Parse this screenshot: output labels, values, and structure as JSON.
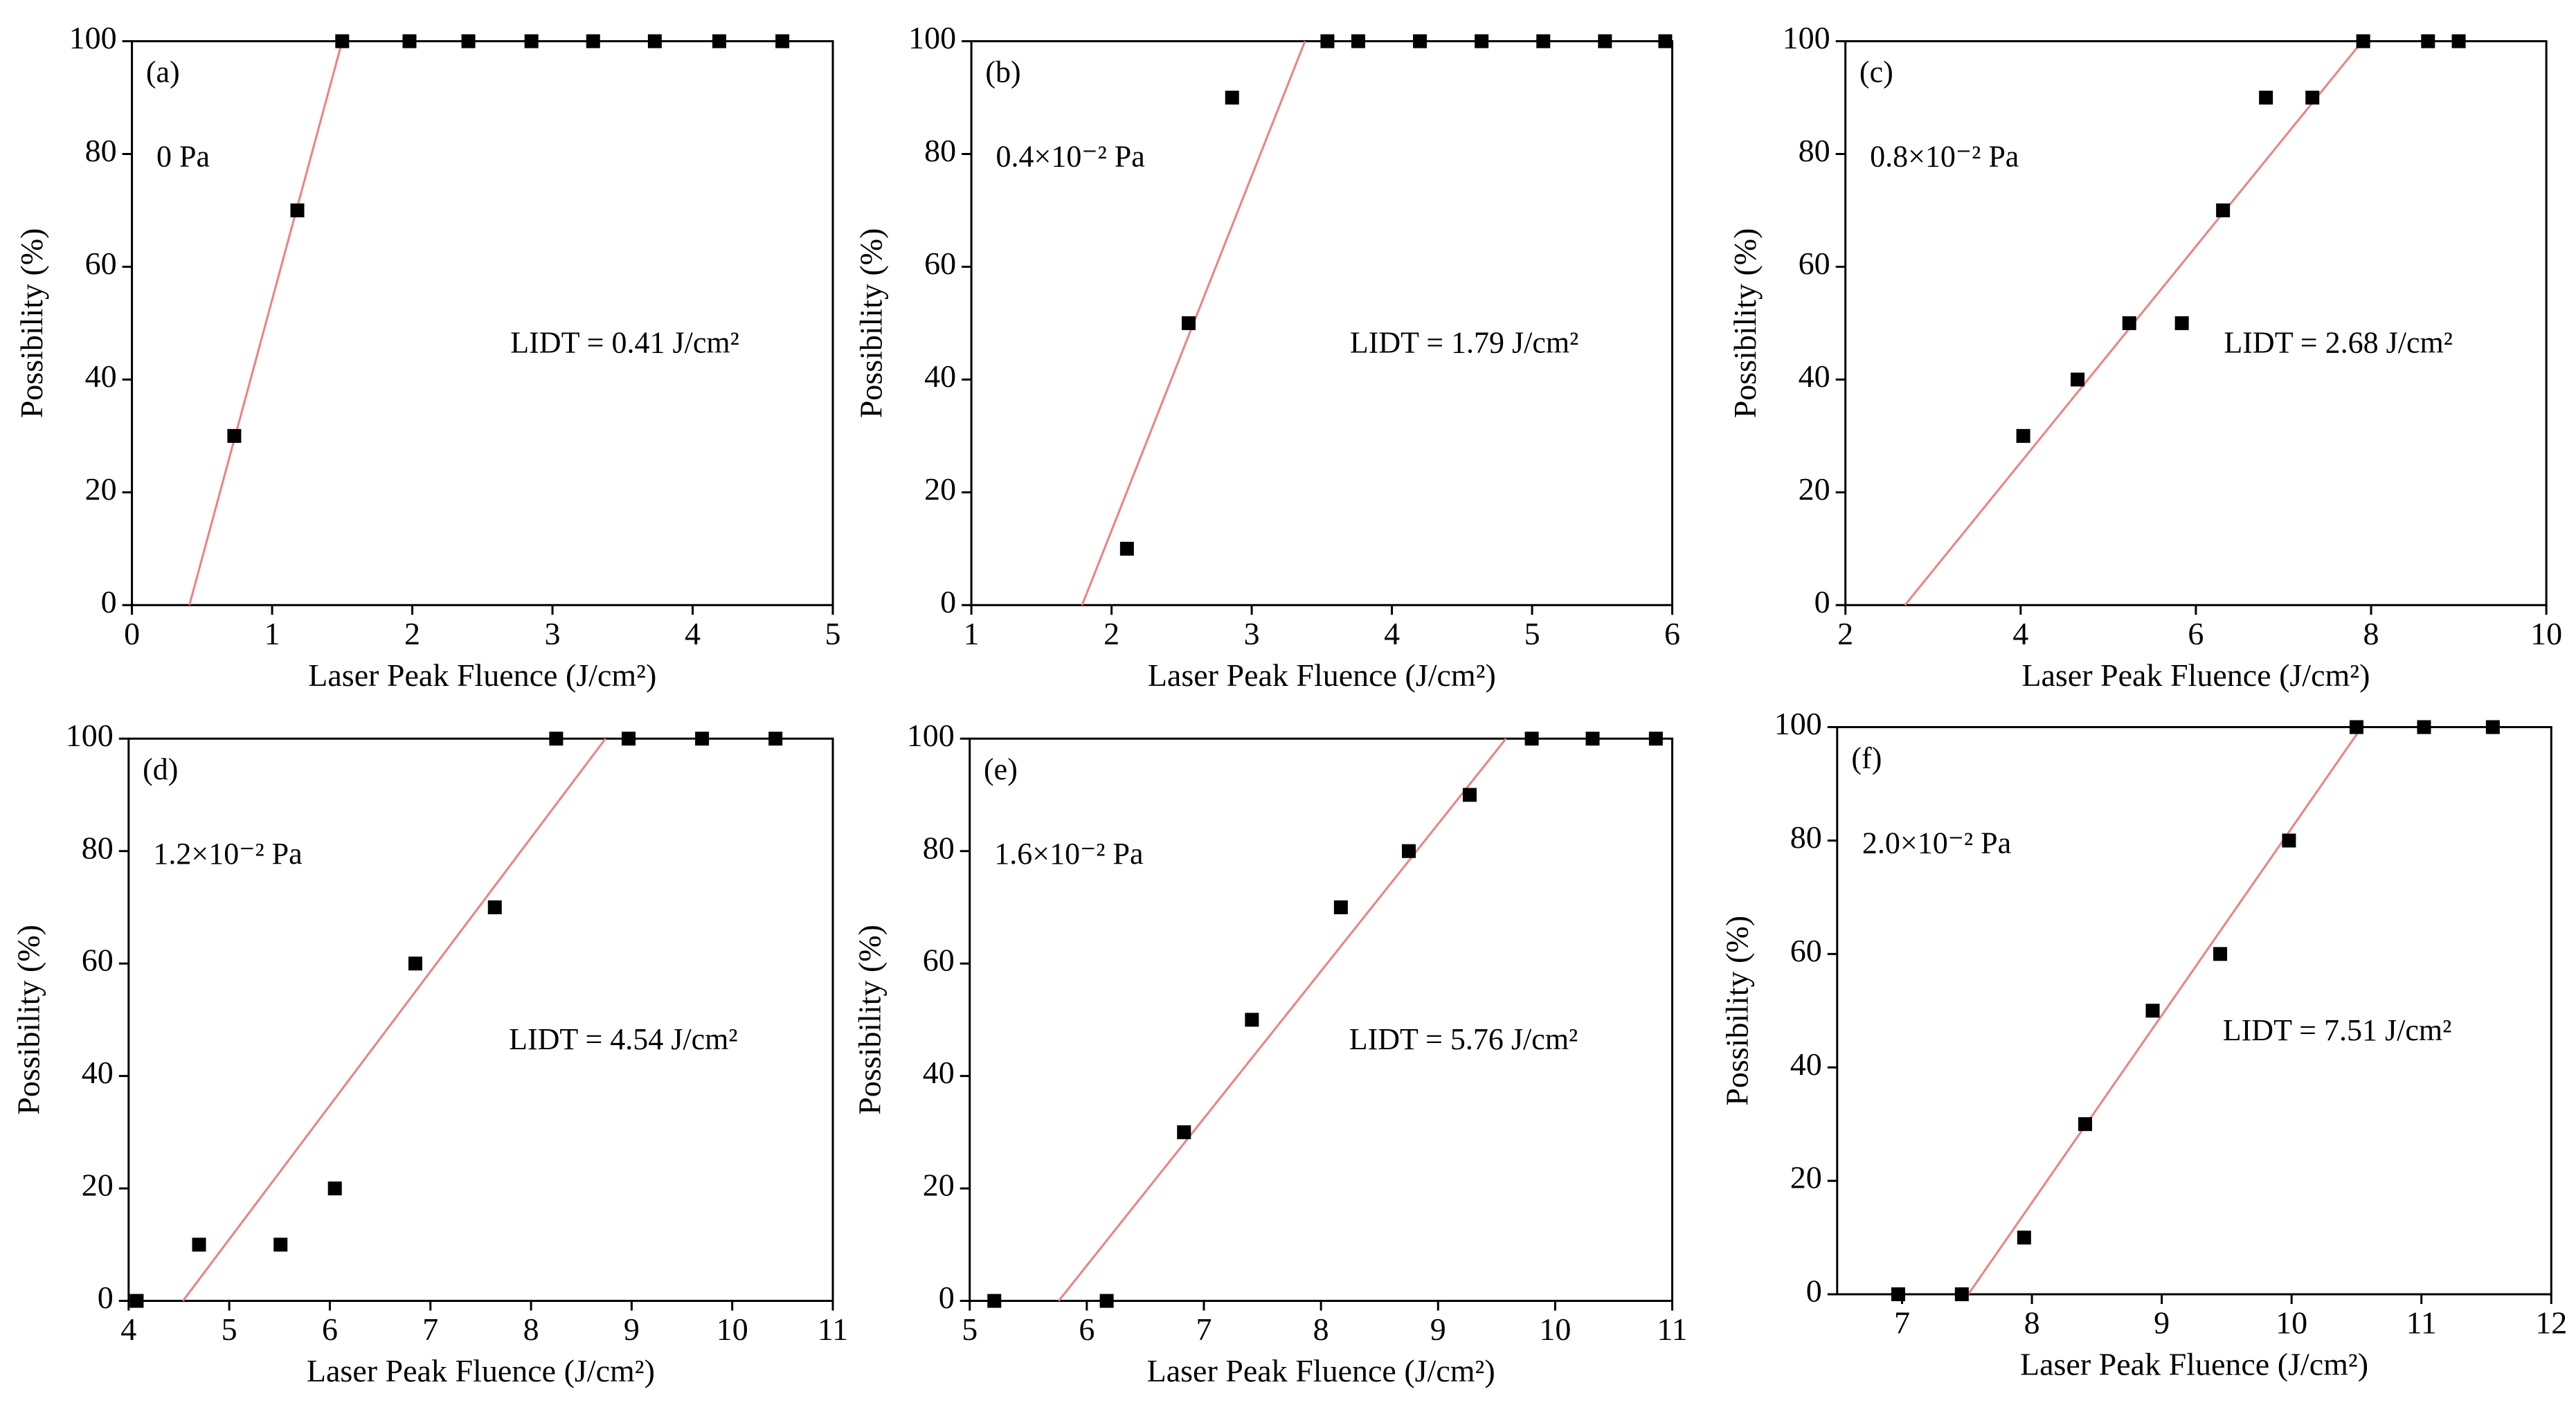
{
  "chart_data": [
    {
      "type": "scatter",
      "label": "(a)",
      "pressure": "0 Pa",
      "annotation": "LIDT = 0.41 J/cm²",
      "xlabel": "Laser Peak Fluence (J/cm²)",
      "ylabel": "Possibility (%)",
      "xlim": [
        0,
        5
      ],
      "xticks": [
        0,
        1,
        2,
        3,
        4,
        5
      ],
      "ylim": [
        0,
        100
      ],
      "yticks": [
        0,
        20,
        40,
        60,
        80,
        100
      ],
      "series": [
        {
          "color": "#000000",
          "x": [
            0.73,
            1.18,
            1.5,
            1.98,
            2.4,
            2.85,
            3.29,
            3.73,
            4.19,
            4.64
          ],
          "values": [
            30,
            70,
            100,
            100,
            100,
            100,
            100,
            100,
            100,
            100
          ]
        }
      ],
      "fit": {
        "color": "#f08080",
        "x": [
          0.41,
          1.5
        ],
        "values": [
          0,
          100
        ]
      }
    },
    {
      "type": "scatter",
      "label": "(b)",
      "pressure": "0.4×10⁻² Pa",
      "annotation": "LIDT = 1.79 J/cm²",
      "xlabel": "Laser Peak Fluence (J/cm²)",
      "ylabel": "Possibility (%)",
      "xlim": [
        1,
        6
      ],
      "xticks": [
        1,
        2,
        3,
        4,
        5,
        6
      ],
      "ylim": [
        0,
        100
      ],
      "yticks": [
        0,
        20,
        40,
        60,
        80,
        100
      ],
      "series": [
        {
          "color": "#000000",
          "x": [
            2.11,
            2.55,
            2.86,
            3.54,
            3.76,
            4.2,
            4.64,
            5.08,
            5.52,
            5.95
          ],
          "values": [
            10,
            50,
            90,
            100,
            100,
            100,
            100,
            100,
            100,
            100
          ]
        }
      ],
      "fit": {
        "color": "#f08080",
        "x": [
          1.79,
          3.38
        ],
        "values": [
          0,
          100
        ]
      }
    },
    {
      "type": "scatter",
      "label": "(c)",
      "pressure": "0.8×10⁻² Pa",
      "annotation": "LIDT = 2.68 J/cm²",
      "xlabel": "Laser Peak Fluence (J/cm²)",
      "ylabel": "Possibility (%)",
      "xlim": [
        2,
        10
      ],
      "xticks": [
        2,
        4,
        6,
        8,
        10
      ],
      "ylim": [
        0,
        100
      ],
      "yticks": [
        0,
        20,
        40,
        60,
        80,
        100
      ],
      "series": [
        {
          "color": "#000000",
          "x": [
            4.03,
            4.65,
            5.24,
            5.84,
            6.31,
            6.8,
            7.33,
            7.91,
            8.65,
            9.0
          ],
          "values": [
            30,
            40,
            50,
            50,
            70,
            90,
            90,
            100,
            100,
            100
          ]
        }
      ],
      "fit": {
        "color": "#f08080",
        "x": [
          2.68,
          7.9
        ],
        "values": [
          0,
          100
        ]
      }
    },
    {
      "type": "scatter",
      "label": "(d)",
      "pressure": "1.2×10⁻² Pa",
      "annotation": "LIDT = 4.54 J/cm²",
      "xlabel": "Laser Peak Fluence (J/cm²)",
      "ylabel": "Possibility (%)",
      "xlim": [
        4,
        11
      ],
      "xticks": [
        4,
        5,
        6,
        7,
        8,
        9,
        10,
        11
      ],
      "ylim": [
        0,
        100
      ],
      "yticks": [
        0,
        20,
        40,
        60,
        80,
        100
      ],
      "series": [
        {
          "color": "#000000",
          "x": [
            4.08,
            4.7,
            5.51,
            6.05,
            6.85,
            7.64,
            8.25,
            8.97,
            9.7,
            10.43
          ],
          "values": [
            0,
            10,
            10,
            20,
            60,
            70,
            100,
            100,
            100,
            100
          ]
        }
      ],
      "fit": {
        "color": "#f08080",
        "x": [
          4.54,
          8.74
        ],
        "values": [
          0,
          100
        ]
      }
    },
    {
      "type": "scatter",
      "label": "(e)",
      "pressure": "1.6×10⁻² Pa",
      "annotation": "LIDT = 5.76 J/cm²",
      "xlabel": "Laser Peak Fluence (J/cm²)",
      "ylabel": "Possibility (%)",
      "xlim": [
        5,
        11
      ],
      "xticks": [
        5,
        6,
        7,
        8,
        9,
        10,
        11
      ],
      "ylim": [
        0,
        100
      ],
      "yticks": [
        0,
        20,
        40,
        60,
        80,
        100
      ],
      "series": [
        {
          "color": "#000000",
          "x": [
            5.21,
            6.17,
            6.83,
            7.41,
            8.17,
            8.75,
            9.27,
            9.8,
            10.32,
            10.86
          ],
          "values": [
            0,
            0,
            30,
            50,
            70,
            80,
            90,
            100,
            100,
            100
          ]
        }
      ],
      "fit": {
        "color": "#f08080",
        "x": [
          5.76,
          9.58
        ],
        "values": [
          0,
          100
        ]
      }
    },
    {
      "type": "scatter",
      "label": "(f)",
      "pressure": "2.0×10⁻² Pa",
      "annotation": "LIDT = 7.51 J/cm²",
      "xlabel": "Laser Peak Fluence (J/cm²)",
      "ylabel": "Possibility (%)",
      "xlim": [
        6.5,
        12
      ],
      "xticks": [
        7,
        8,
        9,
        10,
        11,
        12
      ],
      "ylim": [
        0,
        100
      ],
      "yticks": [
        0,
        20,
        40,
        60,
        80,
        100
      ],
      "series": [
        {
          "color": "#000000",
          "x": [
            6.97,
            7.46,
            7.94,
            8.41,
            8.93,
            9.45,
            9.98,
            10.5,
            11.02,
            11.55
          ],
          "values": [
            0,
            0,
            10,
            30,
            50,
            60,
            80,
            100,
            100,
            100
          ]
        }
      ],
      "fit": {
        "color": "#f08080",
        "x": [
          7.51,
          10.54
        ],
        "values": [
          0,
          100
        ]
      }
    }
  ]
}
